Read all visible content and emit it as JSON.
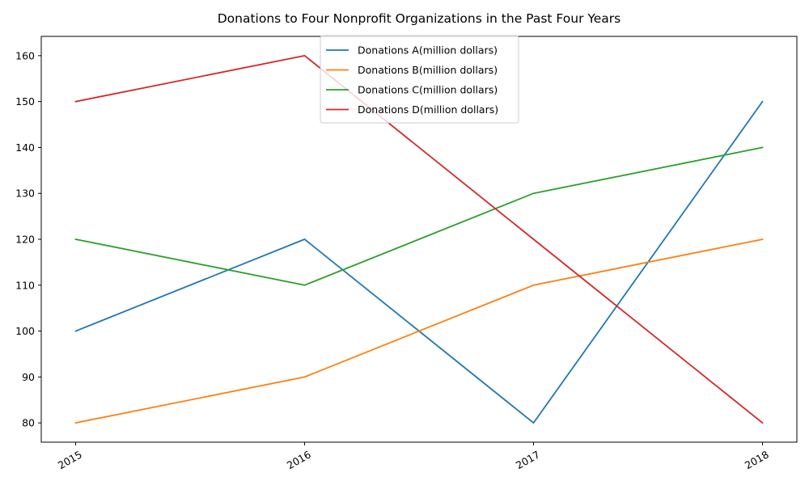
{
  "chart_data": {
    "type": "line",
    "title": "Donations to Four Nonprofit Organizations in the Past Four Years",
    "xlabel": "",
    "ylabel": "",
    "categories": [
      "2015",
      "2016",
      "2017",
      "2018"
    ],
    "ylim": [
      75.8,
      164.2
    ],
    "yticks": [
      80,
      90,
      100,
      110,
      120,
      130,
      140,
      150,
      160
    ],
    "grid": false,
    "legend_position": "upper center",
    "series": [
      {
        "name": "Donations A(million dollars)",
        "color": "#1f77b4",
        "values": [
          100,
          120,
          80,
          150
        ]
      },
      {
        "name": "Donations B(million dollars)",
        "color": "#ff7f0e",
        "values": [
          80,
          90,
          110,
          120
        ]
      },
      {
        "name": "Donations C(million dollars)",
        "color": "#2ca02c",
        "values": [
          120,
          110,
          130,
          140
        ]
      },
      {
        "name": "Donations D(million dollars)",
        "color": "#d62728",
        "values": [
          150,
          160,
          120,
          80
        ]
      }
    ]
  }
}
